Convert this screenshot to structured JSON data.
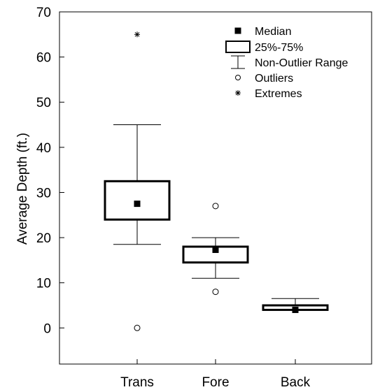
{
  "chart_data": {
    "type": "box",
    "ylabel": "Average Depth (ft.)",
    "xlabel": "",
    "ylim": [
      -8,
      70
    ],
    "yticks": [
      0,
      10,
      20,
      30,
      40,
      50,
      60,
      70
    ],
    "categories": [
      "Trans",
      "Fore",
      "Back"
    ],
    "boxes": [
      {
        "category": "Trans",
        "median": 27.5,
        "q1": 24,
        "q3": 32.5,
        "whisker_low": 18.5,
        "whisker_high": 45,
        "outliers": [
          0
        ],
        "extremes": [
          65
        ]
      },
      {
        "category": "Fore",
        "median": 17.3,
        "q1": 14.5,
        "q3": 18,
        "whisker_low": 11,
        "whisker_high": 20,
        "outliers": [
          27,
          8
        ],
        "extremes": []
      },
      {
        "category": "Back",
        "median": 4,
        "q1": 4,
        "q3": 5,
        "whisker_low": 4,
        "whisker_high": 6.5,
        "outliers": [],
        "extremes": []
      }
    ],
    "legend": {
      "position": "top-right",
      "items": [
        {
          "symbol": "median",
          "label": "Median"
        },
        {
          "symbol": "box",
          "label": "25%-75%"
        },
        {
          "symbol": "whisker",
          "label": "Non-Outlier Range"
        },
        {
          "symbol": "outlier",
          "label": "Outliers"
        },
        {
          "symbol": "extreme",
          "label": "Extremes"
        }
      ]
    },
    "grid": false,
    "colors": {
      "line": "#000000",
      "median_fill": "#000000",
      "background": "#ffffff"
    }
  }
}
